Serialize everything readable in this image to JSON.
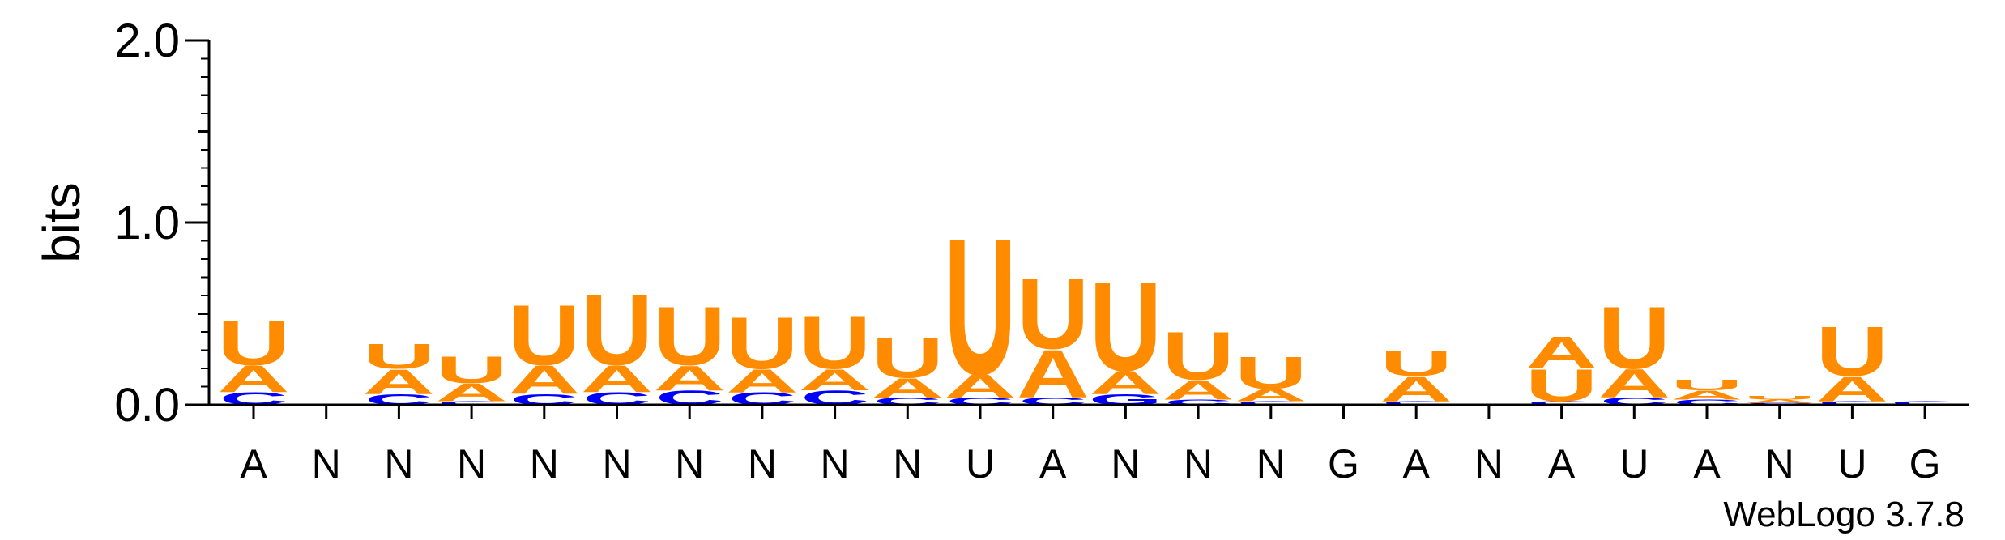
{
  "chart_data": {
    "type": "sequence-logo",
    "ylabel": "bits",
    "ylim": [
      0,
      2
    ],
    "yticks": [
      "0.0",
      "1.0",
      "2.0"
    ],
    "positions": [
      "A",
      "N",
      "N",
      "N",
      "N",
      "N",
      "N",
      "N",
      "N",
      "N",
      "U",
      "A",
      "N",
      "N",
      "N",
      "G",
      "A",
      "N",
      "A",
      "U",
      "A",
      "N",
      "U",
      "G"
    ],
    "stacks": [
      [
        {
          "letter": "C",
          "bits": 0.07
        },
        {
          "letter": "A",
          "bits": 0.15
        },
        {
          "letter": "U",
          "bits": 0.25
        }
      ],
      [],
      [
        {
          "letter": "C",
          "bits": 0.06
        },
        {
          "letter": "A",
          "bits": 0.14
        },
        {
          "letter": "U",
          "bits": 0.14
        }
      ],
      [
        {
          "letter": "C",
          "bits": 0.02
        },
        {
          "letter": "A",
          "bits": 0.1
        },
        {
          "letter": "U",
          "bits": 0.15
        }
      ],
      [
        {
          "letter": "C",
          "bits": 0.06
        },
        {
          "letter": "A",
          "bits": 0.16
        },
        {
          "letter": "U",
          "bits": 0.34
        }
      ],
      [
        {
          "letter": "C",
          "bits": 0.07
        },
        {
          "letter": "A",
          "bits": 0.15
        },
        {
          "letter": "U",
          "bits": 0.4
        }
      ],
      [
        {
          "letter": "C",
          "bits": 0.08
        },
        {
          "letter": "A",
          "bits": 0.14
        },
        {
          "letter": "U",
          "bits": 0.33
        }
      ],
      [
        {
          "letter": "C",
          "bits": 0.07
        },
        {
          "letter": "A",
          "bits": 0.13
        },
        {
          "letter": "U",
          "bits": 0.29
        }
      ],
      [
        {
          "letter": "C",
          "bits": 0.08
        },
        {
          "letter": "A",
          "bits": 0.12
        },
        {
          "letter": "U",
          "bits": 0.3
        }
      ],
      [
        {
          "letter": "C",
          "bits": 0.04
        },
        {
          "letter": "A",
          "bits": 0.11
        },
        {
          "letter": "U",
          "bits": 0.23
        }
      ],
      [
        {
          "letter": "C",
          "bits": 0.04
        },
        {
          "letter": "A",
          "bits": 0.13
        },
        {
          "letter": "U",
          "bits": 0.77
        }
      ],
      [
        {
          "letter": "C",
          "bits": 0.04
        },
        {
          "letter": "A",
          "bits": 0.27
        },
        {
          "letter": "U",
          "bits": 0.4
        }
      ],
      [
        {
          "letter": "G",
          "bits": 0.06
        },
        {
          "letter": "A",
          "bits": 0.13
        },
        {
          "letter": "U",
          "bits": 0.5
        }
      ],
      [
        {
          "letter": "C",
          "bits": 0.03
        },
        {
          "letter": "A",
          "bits": 0.11
        },
        {
          "letter": "U",
          "bits": 0.27
        }
      ],
      [
        {
          "letter": "C",
          "bits": 0.02
        },
        {
          "letter": "A",
          "bits": 0.07
        },
        {
          "letter": "U",
          "bits": 0.18
        }
      ],
      [],
      [
        {
          "letter": "C",
          "bits": 0.02
        },
        {
          "letter": "A",
          "bits": 0.14
        },
        {
          "letter": "U",
          "bits": 0.14
        }
      ],
      [],
      [
        {
          "letter": "C",
          "bits": 0.02
        },
        {
          "letter": "U",
          "bits": 0.18
        },
        {
          "letter": "A",
          "bits": 0.18
        }
      ],
      [
        {
          "letter": "C",
          "bits": 0.04
        },
        {
          "letter": "A",
          "bits": 0.16
        },
        {
          "letter": "U",
          "bits": 0.35
        }
      ],
      [
        {
          "letter": "C",
          "bits": 0.03
        },
        {
          "letter": "A",
          "bits": 0.05
        },
        {
          "letter": "U",
          "bits": 0.06
        }
      ],
      [
        {
          "letter": "C",
          "bits": 0.01
        },
        {
          "letter": "A",
          "bits": 0.02
        },
        {
          "letter": "U",
          "bits": 0.02
        }
      ],
      [
        {
          "letter": "C",
          "bits": 0.02
        },
        {
          "letter": "A",
          "bits": 0.14
        },
        {
          "letter": "U",
          "bits": 0.28
        }
      ],
      [
        {
          "letter": "C",
          "bits": 0.02
        }
      ]
    ],
    "colors": {
      "A": "#ff8c00",
      "U": "#ff8c00",
      "C": "#0000ff",
      "G": "#0000ff"
    },
    "credit": "WebLogo 3.7.8"
  }
}
